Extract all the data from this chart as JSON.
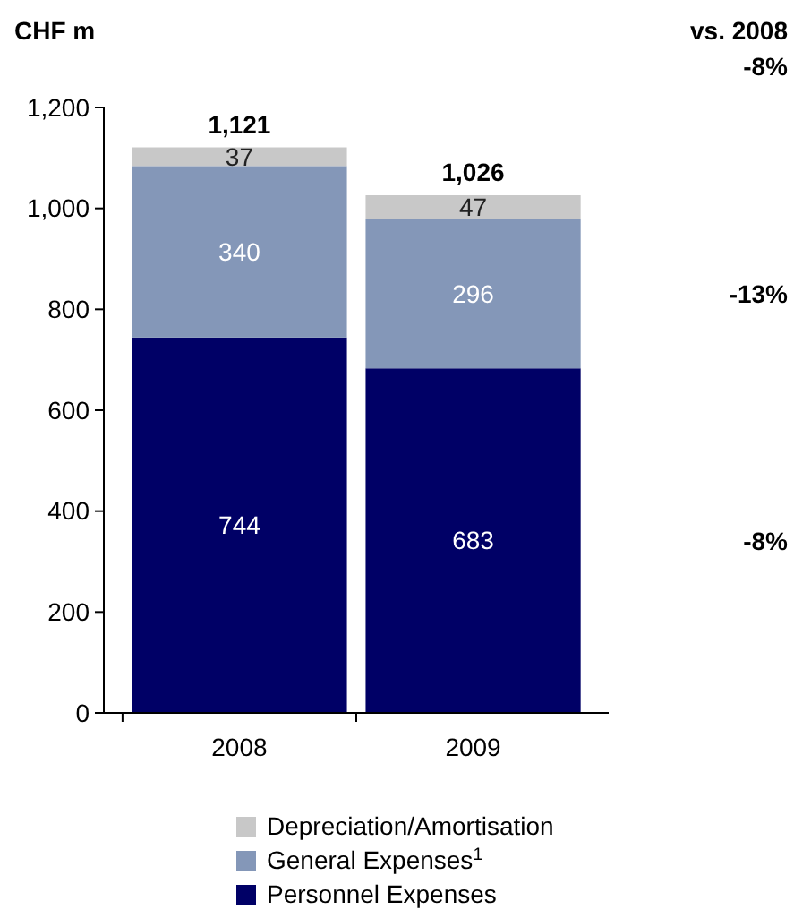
{
  "chart_data": {
    "type": "bar",
    "stacked": true,
    "ylabel": "CHF m",
    "categories": [
      "2008",
      "2009"
    ],
    "series": [
      {
        "name": "Personnel Expenses",
        "color": "#000066",
        "values": [
          744,
          683
        ]
      },
      {
        "name": "General Expenses$^{1}$",
        "color": "#8497b8",
        "values": [
          340,
          296
        ]
      },
      {
        "name": "Depreciation/Amortisation",
        "color": "#c8c8c8",
        "values": [
          37,
          47
        ]
      }
    ],
    "data_labels": true,
    "totals": [
      "1,121",
      "1,026"
    ],
    "ylim": [
      0,
      1200
    ],
    "yticks": [
      0,
      {
        "value": 200,
        "label": "200"
      },
      {
        "value": 400,
        "label": "400"
      },
      {
        "value": 600,
        "label": "600"
      },
      {
        "value": 800,
        "label": "800"
      },
      {
        "value": 1000,
        "label": "1,000"
      },
      {
        "value": 1200,
        "label": "1,200"
      }
    ],
    "grid": false,
    "legend": "bottom",
    "annotations": [
      "vs. 2008",
      "-8%",
      "-13%",
      "-8%"
    ]
  }
}
